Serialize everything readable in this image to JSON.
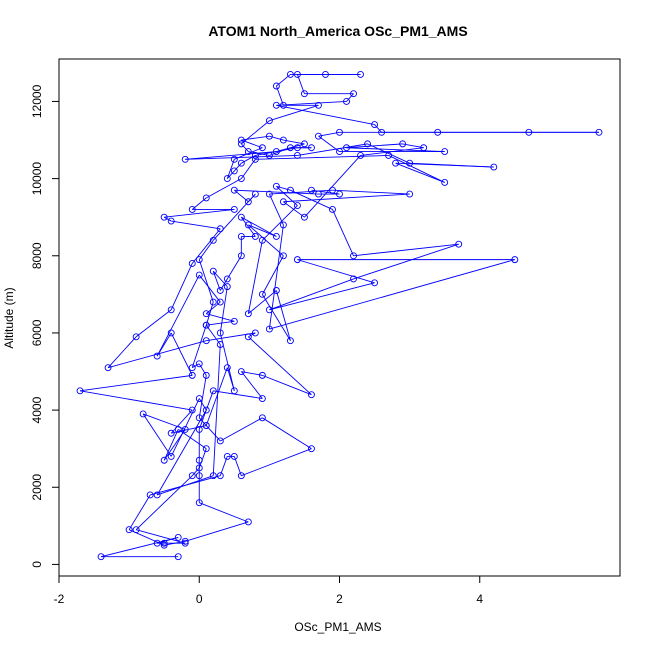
{
  "chart_data": {
    "type": "line",
    "title": "ATOM1 North_America OSc_PM1_AMS",
    "xlabel": "OSc_PM1_AMS",
    "ylabel": "Altitude (m)",
    "xlim": [
      -2,
      6
    ],
    "ylim": [
      -300,
      13100
    ],
    "x_ticks": [
      -2,
      0,
      2,
      4
    ],
    "x_tick_labels": [
      "-2",
      "0",
      "2",
      "4"
    ],
    "y_ticks": [
      0,
      2000,
      4000,
      6000,
      8000,
      10000,
      12000
    ],
    "y_tick_labels": [
      "0",
      "2000",
      "4000",
      "6000",
      "8000",
      "10000",
      "12000"
    ],
    "grid": false,
    "legend": "none",
    "line_color": "#0000ff",
    "marker": "open-circle",
    "series": [
      {
        "points": [
          {
            "x": -0.3,
            "y": 200
          },
          {
            "x": -1.4,
            "y": 200
          },
          {
            "x": -0.3,
            "y": 700
          },
          {
            "x": -0.6,
            "y": 550
          },
          {
            "x": -0.5,
            "y": 550
          },
          {
            "x": -0.2,
            "y": 550
          },
          {
            "x": -0.9,
            "y": 900
          },
          {
            "x": -0.1,
            "y": 2300
          },
          {
            "x": 0.0,
            "y": 2500
          },
          {
            "x": 0.1,
            "y": 3000
          },
          {
            "x": -0.3,
            "y": 3500
          },
          {
            "x": -0.5,
            "y": 2700
          },
          {
            "x": -0.2,
            "y": 3500
          },
          {
            "x": -0.8,
            "y": 3900
          },
          {
            "x": -0.4,
            "y": 2800
          },
          {
            "x": 0.0,
            "y": 4300
          },
          {
            "x": 0.1,
            "y": 4000
          },
          {
            "x": -0.6,
            "y": 1800
          },
          {
            "x": 0.2,
            "y": 2300
          },
          {
            "x": 0.3,
            "y": 5700
          },
          {
            "x": 0.1,
            "y": 6200
          },
          {
            "x": 0.5,
            "y": 6300
          },
          {
            "x": 0.1,
            "y": 6500
          },
          {
            "x": 0.3,
            "y": 6800
          },
          {
            "x": 0.0,
            "y": 7500
          },
          {
            "x": -0.6,
            "y": 5400
          },
          {
            "x": -0.4,
            "y": 6000
          },
          {
            "x": -0.1,
            "y": 4900
          },
          {
            "x": -1.7,
            "y": 4500
          },
          {
            "x": -0.1,
            "y": 4000
          },
          {
            "x": -0.4,
            "y": 3400
          },
          {
            "x": 0.1,
            "y": 3600
          },
          {
            "x": 0.4,
            "y": 5100
          },
          {
            "x": 0.5,
            "y": 4500
          },
          {
            "x": 0.3,
            "y": 6000
          },
          {
            "x": 0.4,
            "y": 7200
          },
          {
            "x": 0.2,
            "y": 7600
          },
          {
            "x": 0.3,
            "y": 7100
          },
          {
            "x": 0.4,
            "y": 7400
          },
          {
            "x": 0.6,
            "y": 8000
          },
          {
            "x": 0.6,
            "y": 8500
          },
          {
            "x": 0.8,
            "y": 8500
          },
          {
            "x": 0.6,
            "y": 9000
          },
          {
            "x": 1.1,
            "y": 8500
          },
          {
            "x": 0.7,
            "y": 8800
          },
          {
            "x": 1.2,
            "y": 8000
          },
          {
            "x": 0.9,
            "y": 7000
          },
          {
            "x": 1.3,
            "y": 5800
          },
          {
            "x": 1.1,
            "y": 7100
          },
          {
            "x": 0.7,
            "y": 6500
          },
          {
            "x": 0.9,
            "y": 8400
          },
          {
            "x": 1.4,
            "y": 9300
          },
          {
            "x": 1.1,
            "y": 9800
          },
          {
            "x": 1.3,
            "y": 9700
          },
          {
            "x": 1.9,
            "y": 9200
          },
          {
            "x": 2.2,
            "y": 8000
          },
          {
            "x": 3.7,
            "y": 8300
          },
          {
            "x": 2.2,
            "y": 7400
          },
          {
            "x": 1.0,
            "y": 6600
          },
          {
            "x": 2.5,
            "y": 7300
          },
          {
            "x": 1.4,
            "y": 7900
          },
          {
            "x": 4.5,
            "y": 7900
          },
          {
            "x": 1.0,
            "y": 6100
          },
          {
            "x": 1.2,
            "y": 8800
          },
          {
            "x": 1.0,
            "y": 9600
          },
          {
            "x": 1.9,
            "y": 9700
          },
          {
            "x": 3.0,
            "y": 9600
          },
          {
            "x": 1.2,
            "y": 9400
          },
          {
            "x": 1.5,
            "y": 9000
          },
          {
            "x": 2.3,
            "y": 10600
          },
          {
            "x": 3.2,
            "y": 10800
          },
          {
            "x": 2.9,
            "y": 10900
          },
          {
            "x": 2.1,
            "y": 10800
          },
          {
            "x": 3.5,
            "y": 10700
          },
          {
            "x": 2.0,
            "y": 10700
          },
          {
            "x": 1.7,
            "y": 11100
          },
          {
            "x": 2.0,
            "y": 11200
          },
          {
            "x": 3.4,
            "y": 11200
          },
          {
            "x": 4.7,
            "y": 11200
          },
          {
            "x": 5.7,
            "y": 11200
          },
          {
            "x": 2.6,
            "y": 11200
          },
          {
            "x": 2.5,
            "y": 11400
          },
          {
            "x": 1.1,
            "y": 11900
          },
          {
            "x": 2.1,
            "y": 12000
          },
          {
            "x": 2.2,
            "y": 12200
          },
          {
            "x": 1.5,
            "y": 12200
          },
          {
            "x": 1.4,
            "y": 12700
          },
          {
            "x": 1.8,
            "y": 12700
          },
          {
            "x": 2.3,
            "y": 12700
          },
          {
            "x": 1.3,
            "y": 12700
          },
          {
            "x": 1.1,
            "y": 12400
          },
          {
            "x": 1.2,
            "y": 11900
          },
          {
            "x": 1.7,
            "y": 11900
          },
          {
            "x": 1.0,
            "y": 11500
          },
          {
            "x": 0.6,
            "y": 10900
          },
          {
            "x": 0.7,
            "y": 10700
          },
          {
            "x": 1.0,
            "y": 10600
          },
          {
            "x": 1.3,
            "y": 10800
          },
          {
            "x": 1.6,
            "y": 10800
          },
          {
            "x": 1.4,
            "y": 10800
          },
          {
            "x": 0.8,
            "y": 10600
          },
          {
            "x": 0.6,
            "y": 10400
          },
          {
            "x": 0.5,
            "y": 10200
          },
          {
            "x": 0.4,
            "y": 10000
          },
          {
            "x": 0.5,
            "y": 10500
          },
          {
            "x": 0.9,
            "y": 10800
          },
          {
            "x": 0.6,
            "y": 11000
          },
          {
            "x": 1.0,
            "y": 11100
          },
          {
            "x": 1.2,
            "y": 11000
          },
          {
            "x": 1.5,
            "y": 10900
          },
          {
            "x": 1.1,
            "y": 10700
          },
          {
            "x": -0.2,
            "y": 10500
          },
          {
            "x": 1.4,
            "y": 10600
          },
          {
            "x": 2.4,
            "y": 10900
          },
          {
            "x": 3.0,
            "y": 10400
          },
          {
            "x": 4.2,
            "y": 10300
          },
          {
            "x": 2.8,
            "y": 10400
          },
          {
            "x": 3.5,
            "y": 9900
          },
          {
            "x": 2.7,
            "y": 10600
          },
          {
            "x": 0.8,
            "y": 10500
          },
          {
            "x": 0.6,
            "y": 10000
          },
          {
            "x": 0.1,
            "y": 9500
          },
          {
            "x": -0.1,
            "y": 9200
          },
          {
            "x": 0.5,
            "y": 9200
          },
          {
            "x": -0.5,
            "y": 9000
          },
          {
            "x": -0.4,
            "y": 8900
          },
          {
            "x": 0.3,
            "y": 8700
          },
          {
            "x": -0.1,
            "y": 7800
          },
          {
            "x": -0.4,
            "y": 6600
          },
          {
            "x": -0.9,
            "y": 5900
          },
          {
            "x": -1.3,
            "y": 5100
          },
          {
            "x": 0.1,
            "y": 5800
          },
          {
            "x": 0.8,
            "y": 6000
          },
          {
            "x": 0.7,
            "y": 5900
          },
          {
            "x": 1.6,
            "y": 4400
          },
          {
            "x": 0.9,
            "y": 4900
          },
          {
            "x": 0.6,
            "y": 5000
          },
          {
            "x": 0.9,
            "y": 4300
          },
          {
            "x": 0.2,
            "y": 4500
          },
          {
            "x": 0.0,
            "y": 3500
          },
          {
            "x": 0.0,
            "y": 2700
          },
          {
            "x": 0.0,
            "y": 2300
          },
          {
            "x": 0.0,
            "y": 1600
          },
          {
            "x": 0.7,
            "y": 1100
          },
          {
            "x": -0.2,
            "y": 600
          },
          {
            "x": -0.5,
            "y": 500
          },
          {
            "x": -1.0,
            "y": 900
          },
          {
            "x": -0.7,
            "y": 1800
          },
          {
            "x": 0.3,
            "y": 2300
          },
          {
            "x": 0.4,
            "y": 2800
          },
          {
            "x": 0.5,
            "y": 2800
          },
          {
            "x": 0.6,
            "y": 2300
          },
          {
            "x": 1.6,
            "y": 3000
          },
          {
            "x": 0.9,
            "y": 3800
          },
          {
            "x": 0.3,
            "y": 3200
          },
          {
            "x": 0.1,
            "y": 3600
          },
          {
            "x": 0.0,
            "y": 3800
          },
          {
            "x": 0.1,
            "y": 4900
          },
          {
            "x": 0.0,
            "y": 5200
          },
          {
            "x": -0.1,
            "y": 5100
          },
          {
            "x": 0.1,
            "y": 6200
          },
          {
            "x": 0.2,
            "y": 6800
          },
          {
            "x": 0.0,
            "y": 7900
          },
          {
            "x": 0.2,
            "y": 8400
          },
          {
            "x": 0.8,
            "y": 9600
          },
          {
            "x": 0.7,
            "y": 9400
          },
          {
            "x": 0.5,
            "y": 9700
          },
          {
            "x": 1.7,
            "y": 9600
          },
          {
            "x": 2.0,
            "y": 9600
          },
          {
            "x": 1.6,
            "y": 9700
          }
        ]
      }
    ]
  }
}
